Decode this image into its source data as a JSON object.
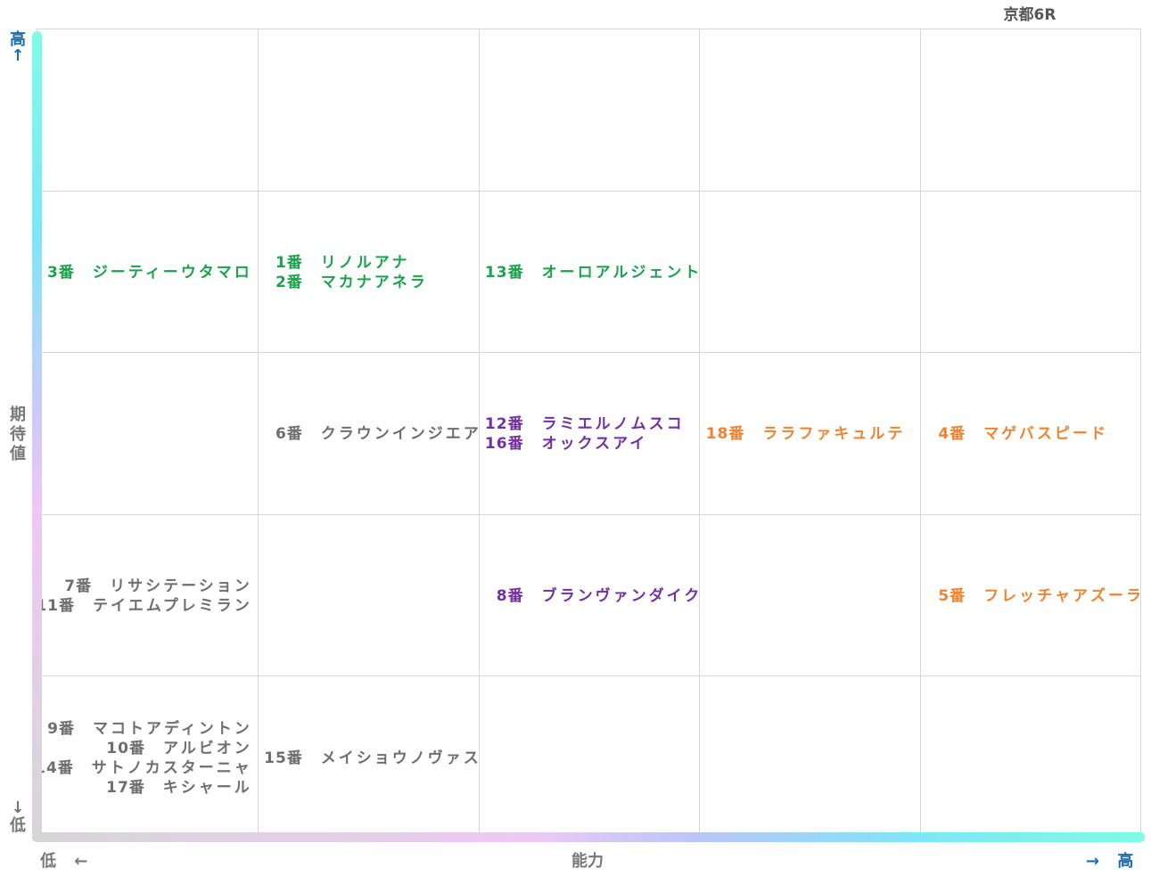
{
  "title": "京都6R",
  "axes": {
    "y_label": "期待値",
    "y_high": "高",
    "y_high_arrow": "↑",
    "y_low": "低",
    "y_low_arrow": "↓",
    "x_label": "能力",
    "x_low": "低",
    "x_low_arrow": "←",
    "x_high": "高",
    "x_high_arrow": "→"
  },
  "colors": {
    "green": "#1aa34a",
    "gray": "#6e6e6e",
    "purple": "#7330a0",
    "orange": "#ee8430",
    "axis_label_blue": "#1f6fb0"
  },
  "cells": [
    {
      "row": 1,
      "col": 0,
      "color": "green",
      "align": "flex-end",
      "entries": [
        {
          "num": "3番",
          "name": "ジーティーウタマロ"
        }
      ]
    },
    {
      "row": 1,
      "col": 1,
      "color": "green",
      "align": "flex-start",
      "entries": [
        {
          "num": "1番",
          "name": "リノルアナ"
        },
        {
          "num": "2番",
          "name": "マカナアネラ"
        }
      ]
    },
    {
      "row": 1,
      "col": 2,
      "color": "green",
      "align": "flex-start",
      "entries": [
        {
          "num": "13番",
          "name": "オーロアルジェント"
        }
      ]
    },
    {
      "row": 2,
      "col": 1,
      "color": "gray",
      "align": "flex-start",
      "entries": [
        {
          "num": "6番",
          "name": "クラウンインジエア"
        }
      ]
    },
    {
      "row": 2,
      "col": 2,
      "color": "purple",
      "align": "flex-start",
      "entries": [
        {
          "num": "12番",
          "name": "ラミエルノムスコ"
        },
        {
          "num": "16番",
          "name": "オックスアイ"
        }
      ]
    },
    {
      "row": 2,
      "col": 3,
      "color": "orange",
      "align": "flex-start",
      "entries": [
        {
          "num": "18番",
          "name": "ララファキュルテ"
        }
      ]
    },
    {
      "row": 2,
      "col": 4,
      "color": "orange",
      "align": "flex-start",
      "entries": [
        {
          "num": "4番",
          "name": "マゲバスピード"
        }
      ]
    },
    {
      "row": 3,
      "col": 0,
      "color": "gray",
      "align": "flex-end",
      "entries": [
        {
          "num": "7番",
          "name": "リサシテーション"
        },
        {
          "num": "11番",
          "name": "テイエムプレミラン"
        }
      ]
    },
    {
      "row": 3,
      "col": 2,
      "color": "purple",
      "align": "flex-start",
      "entries": [
        {
          "num": "8番",
          "name": "ブランヴァンダイク"
        }
      ]
    },
    {
      "row": 3,
      "col": 4,
      "color": "orange",
      "align": "flex-start",
      "entries": [
        {
          "num": "5番",
          "name": "フレッチャアズーラ"
        }
      ]
    },
    {
      "row": 4,
      "col": 0,
      "color": "gray",
      "align": "flex-end",
      "entries": [
        {
          "num": "9番",
          "name": "マコトアディントン"
        },
        {
          "num": "10番",
          "name": "アルビオン"
        },
        {
          "num": "14番",
          "name": "サトノカスターニャ"
        },
        {
          "num": "17番",
          "name": "キシャール"
        }
      ]
    },
    {
      "row": 4,
      "col": 1,
      "color": "gray",
      "align": "flex-start",
      "entries": [
        {
          "num": "15番",
          "name": "メイショウノヴァス"
        }
      ]
    }
  ]
}
